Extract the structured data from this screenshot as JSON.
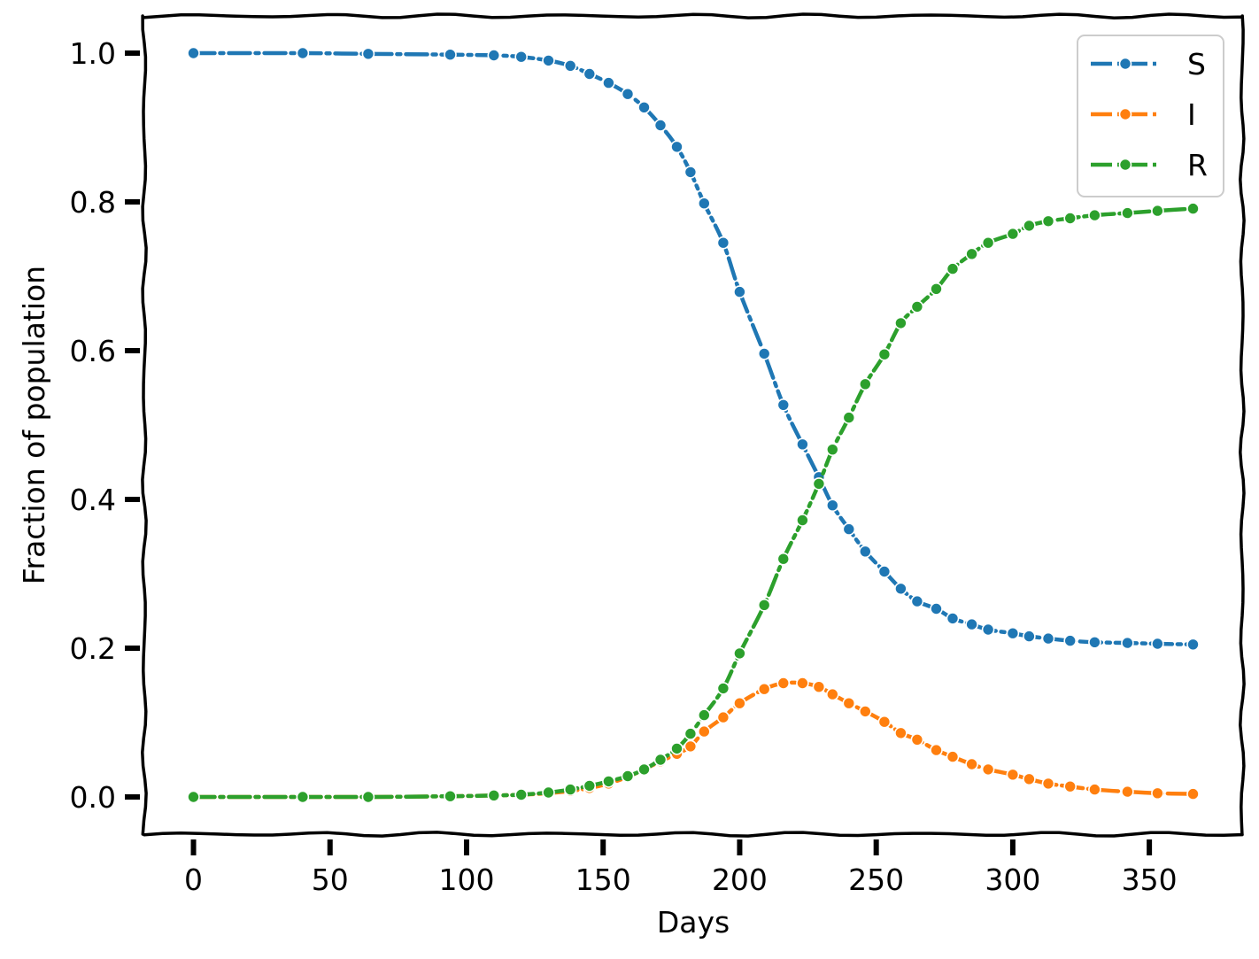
{
  "chart_data": {
    "type": "line",
    "title": "",
    "xlabel": "Days",
    "ylabel": "Fraction of population",
    "xlim": [
      -18,
      384
    ],
    "ylim": [
      -0.05,
      1.05
    ],
    "xticks": [
      0,
      50,
      100,
      150,
      200,
      250,
      300,
      350
    ],
    "yticks": [
      0.0,
      0.2,
      0.4,
      0.6,
      0.8,
      1.0
    ],
    "xtick_labels": [
      "0",
      "50",
      "100",
      "150",
      "200",
      "250",
      "300",
      "350"
    ],
    "ytick_labels": [
      "0.0",
      "0.2",
      "0.4",
      "0.6",
      "0.8",
      "1.0"
    ],
    "grid": false,
    "legend_position": "top-right",
    "style": "xkcd",
    "series": [
      {
        "name": "S",
        "color": "#1f77b4",
        "x": [
          0,
          40,
          64,
          94,
          110,
          120,
          130,
          138,
          145,
          152,
          159,
          165,
          171,
          177,
          182,
          187,
          194,
          200,
          209,
          216,
          223,
          229,
          234,
          240,
          246,
          253,
          259,
          265,
          272,
          278,
          285,
          291,
          300,
          306,
          313,
          321,
          330,
          342,
          353,
          366
        ],
        "y": [
          1.0,
          1.0,
          0.999,
          0.998,
          0.997,
          0.995,
          0.99,
          0.983,
          0.972,
          0.96,
          0.945,
          0.927,
          0.903,
          0.874,
          0.84,
          0.798,
          0.745,
          0.679,
          0.596,
          0.527,
          0.474,
          0.43,
          0.392,
          0.36,
          0.33,
          0.303,
          0.28,
          0.263,
          0.253,
          0.24,
          0.232,
          0.225,
          0.22,
          0.216,
          0.213,
          0.21,
          0.208,
          0.207,
          0.206,
          0.205
        ]
      },
      {
        "name": "I",
        "color": "#ff7f0e",
        "x": [
          0,
          40,
          64,
          94,
          110,
          120,
          130,
          138,
          145,
          152,
          159,
          165,
          171,
          177,
          182,
          187,
          194,
          200,
          209,
          216,
          223,
          229,
          234,
          240,
          246,
          253,
          259,
          265,
          272,
          278,
          285,
          291,
          300,
          306,
          313,
          321,
          330,
          342,
          353,
          366
        ],
        "y": [
          0.0,
          0.0,
          0.0,
          0.001,
          0.002,
          0.003,
          0.005,
          0.008,
          0.012,
          0.018,
          0.027,
          0.037,
          0.048,
          0.058,
          0.068,
          0.088,
          0.107,
          0.126,
          0.145,
          0.153,
          0.153,
          0.148,
          0.138,
          0.126,
          0.115,
          0.101,
          0.086,
          0.077,
          0.063,
          0.054,
          0.044,
          0.037,
          0.03,
          0.024,
          0.018,
          0.014,
          0.01,
          0.007,
          0.005,
          0.004
        ]
      },
      {
        "name": "R",
        "color": "#2ca02c",
        "x": [
          0,
          40,
          64,
          94,
          110,
          120,
          130,
          138,
          145,
          152,
          159,
          165,
          171,
          177,
          182,
          187,
          194,
          200,
          209,
          216,
          223,
          229,
          234,
          240,
          246,
          253,
          259,
          265,
          272,
          278,
          285,
          291,
          300,
          306,
          313,
          321,
          330,
          342,
          353,
          366
        ],
        "y": [
          0.0,
          0.0,
          0.0,
          0.001,
          0.002,
          0.003,
          0.006,
          0.01,
          0.015,
          0.021,
          0.028,
          0.037,
          0.05,
          0.065,
          0.085,
          0.11,
          0.146,
          0.193,
          0.258,
          0.32,
          0.372,
          0.421,
          0.467,
          0.51,
          0.555,
          0.595,
          0.637,
          0.659,
          0.683,
          0.71,
          0.73,
          0.745,
          0.757,
          0.768,
          0.774,
          0.778,
          0.782,
          0.785,
          0.788,
          0.791
        ]
      }
    ]
  }
}
